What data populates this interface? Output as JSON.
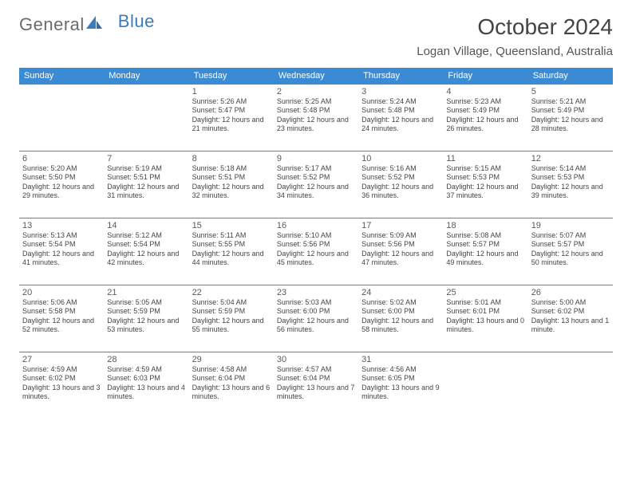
{
  "logo": {
    "part1": "General",
    "part2": "Blue"
  },
  "title": "October 2024",
  "location": "Logan Village, Queensland, Australia",
  "colors": {
    "header_bg": "#3b8bd4",
    "header_text": "#ffffff",
    "border": "#3b8bd4",
    "body_text": "#444444",
    "logo_gray": "#6b6b6b",
    "logo_blue": "#3b7bbf"
  },
  "day_headers": [
    "Sunday",
    "Monday",
    "Tuesday",
    "Wednesday",
    "Thursday",
    "Friday",
    "Saturday"
  ],
  "weeks": [
    [
      null,
      null,
      {
        "n": "1",
        "sr": "5:26 AM",
        "ss": "5:47 PM",
        "dl": "12 hours and 21 minutes."
      },
      {
        "n": "2",
        "sr": "5:25 AM",
        "ss": "5:48 PM",
        "dl": "12 hours and 23 minutes."
      },
      {
        "n": "3",
        "sr": "5:24 AM",
        "ss": "5:48 PM",
        "dl": "12 hours and 24 minutes."
      },
      {
        "n": "4",
        "sr": "5:23 AM",
        "ss": "5:49 PM",
        "dl": "12 hours and 26 minutes."
      },
      {
        "n": "5",
        "sr": "5:21 AM",
        "ss": "5:49 PM",
        "dl": "12 hours and 28 minutes."
      }
    ],
    [
      {
        "n": "6",
        "sr": "5:20 AM",
        "ss": "5:50 PM",
        "dl": "12 hours and 29 minutes."
      },
      {
        "n": "7",
        "sr": "5:19 AM",
        "ss": "5:51 PM",
        "dl": "12 hours and 31 minutes."
      },
      {
        "n": "8",
        "sr": "5:18 AM",
        "ss": "5:51 PM",
        "dl": "12 hours and 32 minutes."
      },
      {
        "n": "9",
        "sr": "5:17 AM",
        "ss": "5:52 PM",
        "dl": "12 hours and 34 minutes."
      },
      {
        "n": "10",
        "sr": "5:16 AM",
        "ss": "5:52 PM",
        "dl": "12 hours and 36 minutes."
      },
      {
        "n": "11",
        "sr": "5:15 AM",
        "ss": "5:53 PM",
        "dl": "12 hours and 37 minutes."
      },
      {
        "n": "12",
        "sr": "5:14 AM",
        "ss": "5:53 PM",
        "dl": "12 hours and 39 minutes."
      }
    ],
    [
      {
        "n": "13",
        "sr": "5:13 AM",
        "ss": "5:54 PM",
        "dl": "12 hours and 41 minutes."
      },
      {
        "n": "14",
        "sr": "5:12 AM",
        "ss": "5:54 PM",
        "dl": "12 hours and 42 minutes."
      },
      {
        "n": "15",
        "sr": "5:11 AM",
        "ss": "5:55 PM",
        "dl": "12 hours and 44 minutes."
      },
      {
        "n": "16",
        "sr": "5:10 AM",
        "ss": "5:56 PM",
        "dl": "12 hours and 45 minutes."
      },
      {
        "n": "17",
        "sr": "5:09 AM",
        "ss": "5:56 PM",
        "dl": "12 hours and 47 minutes."
      },
      {
        "n": "18",
        "sr": "5:08 AM",
        "ss": "5:57 PM",
        "dl": "12 hours and 49 minutes."
      },
      {
        "n": "19",
        "sr": "5:07 AM",
        "ss": "5:57 PM",
        "dl": "12 hours and 50 minutes."
      }
    ],
    [
      {
        "n": "20",
        "sr": "5:06 AM",
        "ss": "5:58 PM",
        "dl": "12 hours and 52 minutes."
      },
      {
        "n": "21",
        "sr": "5:05 AM",
        "ss": "5:59 PM",
        "dl": "12 hours and 53 minutes."
      },
      {
        "n": "22",
        "sr": "5:04 AM",
        "ss": "5:59 PM",
        "dl": "12 hours and 55 minutes."
      },
      {
        "n": "23",
        "sr": "5:03 AM",
        "ss": "6:00 PM",
        "dl": "12 hours and 56 minutes."
      },
      {
        "n": "24",
        "sr": "5:02 AM",
        "ss": "6:00 PM",
        "dl": "12 hours and 58 minutes."
      },
      {
        "n": "25",
        "sr": "5:01 AM",
        "ss": "6:01 PM",
        "dl": "13 hours and 0 minutes."
      },
      {
        "n": "26",
        "sr": "5:00 AM",
        "ss": "6:02 PM",
        "dl": "13 hours and 1 minute."
      }
    ],
    [
      {
        "n": "27",
        "sr": "4:59 AM",
        "ss": "6:02 PM",
        "dl": "13 hours and 3 minutes."
      },
      {
        "n": "28",
        "sr": "4:59 AM",
        "ss": "6:03 PM",
        "dl": "13 hours and 4 minutes."
      },
      {
        "n": "29",
        "sr": "4:58 AM",
        "ss": "6:04 PM",
        "dl": "13 hours and 6 minutes."
      },
      {
        "n": "30",
        "sr": "4:57 AM",
        "ss": "6:04 PM",
        "dl": "13 hours and 7 minutes."
      },
      {
        "n": "31",
        "sr": "4:56 AM",
        "ss": "6:05 PM",
        "dl": "13 hours and 9 minutes."
      },
      null,
      null
    ]
  ]
}
